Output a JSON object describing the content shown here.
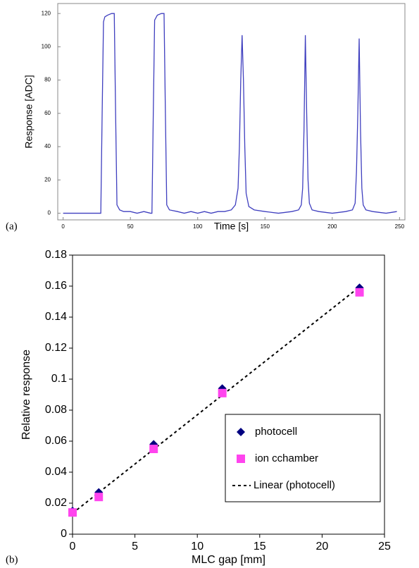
{
  "chart_data": [
    {
      "type": "line",
      "panel_label": "(a)",
      "x_label": "Time [s]",
      "y_label": "Response [ADC]",
      "xlim": [
        -4,
        254
      ],
      "ylim": [
        -4,
        126
      ],
      "xticks": [
        0,
        50,
        100,
        150,
        200,
        250
      ],
      "yticks": [
        0,
        20,
        40,
        60,
        80,
        100,
        120
      ],
      "series": [
        {
          "color": "#3f3fbf",
          "x": [
            0,
            28,
            29,
            30,
            31,
            33,
            36,
            38,
            39,
            40,
            42,
            45,
            50,
            55,
            60,
            65,
            66,
            67,
            68,
            70,
            73,
            75,
            76,
            77,
            79,
            85,
            90,
            95,
            100,
            105,
            110,
            115,
            120,
            125,
            128,
            130,
            131,
            132,
            133,
            134,
            135,
            136,
            138,
            142,
            150,
            160,
            170,
            175,
            177,
            178,
            179,
            180,
            181,
            182,
            183,
            185,
            190,
            200,
            210,
            215,
            217,
            218,
            219,
            220,
            221,
            222,
            223,
            225,
            230,
            240,
            248
          ],
          "values": [
            0,
            0,
            60,
            115,
            118,
            119,
            120,
            120,
            60,
            5,
            2,
            1,
            1,
            0,
            1,
            0,
            0,
            60,
            116,
            119,
            120,
            120,
            60,
            5,
            2,
            1,
            0,
            1,
            0,
            1,
            0,
            1,
            1,
            2,
            5,
            15,
            40,
            80,
            107,
            80,
            40,
            12,
            4,
            2,
            1,
            0,
            1,
            2,
            5,
            15,
            50,
            107,
            60,
            20,
            6,
            2,
            1,
            0,
            1,
            2,
            6,
            25,
            60,
            105,
            50,
            15,
            5,
            2,
            1,
            0,
            1
          ]
        }
      ]
    },
    {
      "type": "scatter",
      "panel_label": "(b)",
      "x_label": "MLC gap [mm]",
      "y_label": "Relative response",
      "xlim": [
        0,
        25
      ],
      "ylim": [
        0,
        0.18
      ],
      "xticks": [
        0,
        5,
        10,
        15,
        20,
        25
      ],
      "yticks": [
        0,
        0.02,
        0.04,
        0.06,
        0.08,
        0.1,
        0.12,
        0.14,
        0.16,
        0.18
      ],
      "legend": "lower right",
      "series": [
        {
          "name": "photocell",
          "color": "#000080",
          "marker": "diamond",
          "x": [
            0,
            2.1,
            6.5,
            12,
            23
          ],
          "values": [
            0.015,
            0.027,
            0.058,
            0.094,
            0.159
          ]
        },
        {
          "name": "ion cchamber",
          "color": "#ff44ee",
          "marker": "square",
          "x": [
            0,
            2.1,
            6.5,
            12,
            23
          ],
          "values": [
            0.014,
            0.024,
            0.055,
            0.091,
            0.156
          ]
        },
        {
          "name": "Linear (photocell)",
          "color": "#000000",
          "line": "dashed",
          "x": [
            0,
            23
          ],
          "values": [
            0.0135,
            0.1595
          ]
        }
      ]
    }
  ]
}
